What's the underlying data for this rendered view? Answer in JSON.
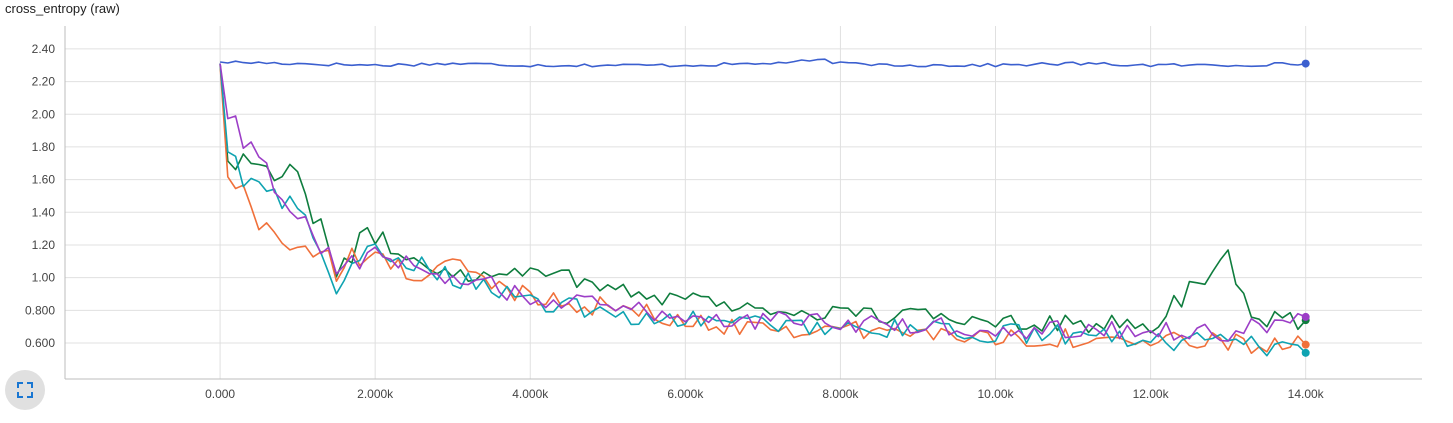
{
  "chart_data": {
    "type": "line",
    "title": "cross_entropy (raw)",
    "xlabel": "",
    "ylabel": "",
    "xlim": [
      -2000,
      15500
    ],
    "ylim": [
      0.38,
      2.54
    ],
    "grid": true,
    "x_ticks": [
      0,
      2000,
      4000,
      6000,
      8000,
      10000,
      12000,
      14000
    ],
    "x_tick_labels": [
      "0.000",
      "2.000k",
      "4.000k",
      "6.000k",
      "8.000k",
      "10.00k",
      "12.00k",
      "14.00k"
    ],
    "y_ticks": [
      0.6,
      0.8,
      1.0,
      1.2,
      1.4,
      1.6,
      1.8,
      2.0,
      2.2,
      2.4
    ],
    "y_tick_labels": [
      "0.600",
      "0.800",
      "1.00",
      "1.20",
      "1.40",
      "1.60",
      "1.80",
      "2.00",
      "2.20",
      "2.40"
    ],
    "series": [
      {
        "name": "blue",
        "color": "#3b5fcf",
        "end_value": 2.31,
        "x": [
          0,
          1000,
          2000,
          3000,
          4000,
          5000,
          6000,
          7000,
          7800,
          8000,
          9000,
          10000,
          11000,
          12000,
          13000,
          14000
        ],
        "values": [
          2.32,
          2.31,
          2.3,
          2.31,
          2.3,
          2.3,
          2.3,
          2.31,
          2.33,
          2.31,
          2.3,
          2.3,
          2.31,
          2.3,
          2.3,
          2.31
        ]
      },
      {
        "name": "green",
        "color": "#0f7d3e",
        "end_value": 0.74,
        "x": [
          0,
          100,
          500,
          1000,
          1200,
          1500,
          2000,
          2500,
          3000,
          3500,
          4000,
          4500,
          5000,
          5500,
          6000,
          6500,
          7000,
          8000,
          9000,
          10000,
          11000,
          12000,
          13000,
          13200,
          13500,
          14000
        ],
        "values": [
          2.31,
          1.75,
          1.7,
          1.65,
          1.35,
          1.1,
          1.25,
          1.1,
          1.05,
          1.0,
          1.08,
          1.0,
          0.95,
          0.9,
          0.88,
          0.85,
          0.8,
          0.78,
          0.76,
          0.75,
          0.72,
          0.7,
          1.15,
          0.85,
          0.75,
          0.74
        ]
      },
      {
        "name": "orange",
        "color": "#f0703a",
        "end_value": 0.59,
        "x": [
          0,
          100,
          500,
          1000,
          1500,
          2000,
          2500,
          3000,
          3500,
          4000,
          4500,
          5000,
          5500,
          6000,
          7000,
          8000,
          9000,
          10000,
          11000,
          12000,
          13000,
          14000
        ],
        "values": [
          2.3,
          1.64,
          1.35,
          1.2,
          1.05,
          1.15,
          1.0,
          1.1,
          0.95,
          0.9,
          0.85,
          0.82,
          0.78,
          0.72,
          0.7,
          0.68,
          0.66,
          0.64,
          0.63,
          0.61,
          0.6,
          0.59
        ]
      },
      {
        "name": "teal",
        "color": "#0fa3b1",
        "end_value": 0.54,
        "x": [
          0,
          100,
          500,
          1000,
          1500,
          2000,
          2500,
          3000,
          3500,
          4000,
          4500,
          5000,
          5500,
          6000,
          7000,
          8000,
          9000,
          10000,
          11000,
          12000,
          13000,
          14000
        ],
        "values": [
          2.31,
          1.78,
          1.5,
          1.45,
          0.95,
          1.15,
          1.1,
          1.0,
          0.95,
          0.85,
          0.82,
          0.78,
          0.76,
          0.74,
          0.72,
          0.7,
          0.68,
          0.66,
          0.65,
          0.62,
          0.6,
          0.54
        ]
      },
      {
        "name": "purple",
        "color": "#9c3ec7",
        "end_value": 0.76,
        "x": [
          0,
          100,
          500,
          1000,
          1500,
          2000,
          2500,
          3000,
          3500,
          4000,
          4500,
          5000,
          5500,
          6000,
          7000,
          8000,
          9000,
          10000,
          11000,
          12000,
          13000,
          14000
        ],
        "values": [
          2.31,
          1.97,
          1.7,
          1.4,
          1.05,
          1.2,
          1.05,
          1.0,
          0.95,
          0.88,
          0.85,
          0.82,
          0.8,
          0.76,
          0.74,
          0.72,
          0.7,
          0.69,
          0.68,
          0.68,
          0.66,
          0.76
        ]
      }
    ]
  },
  "controls": {
    "expand_icon": "fullscreen-expand-icon"
  }
}
